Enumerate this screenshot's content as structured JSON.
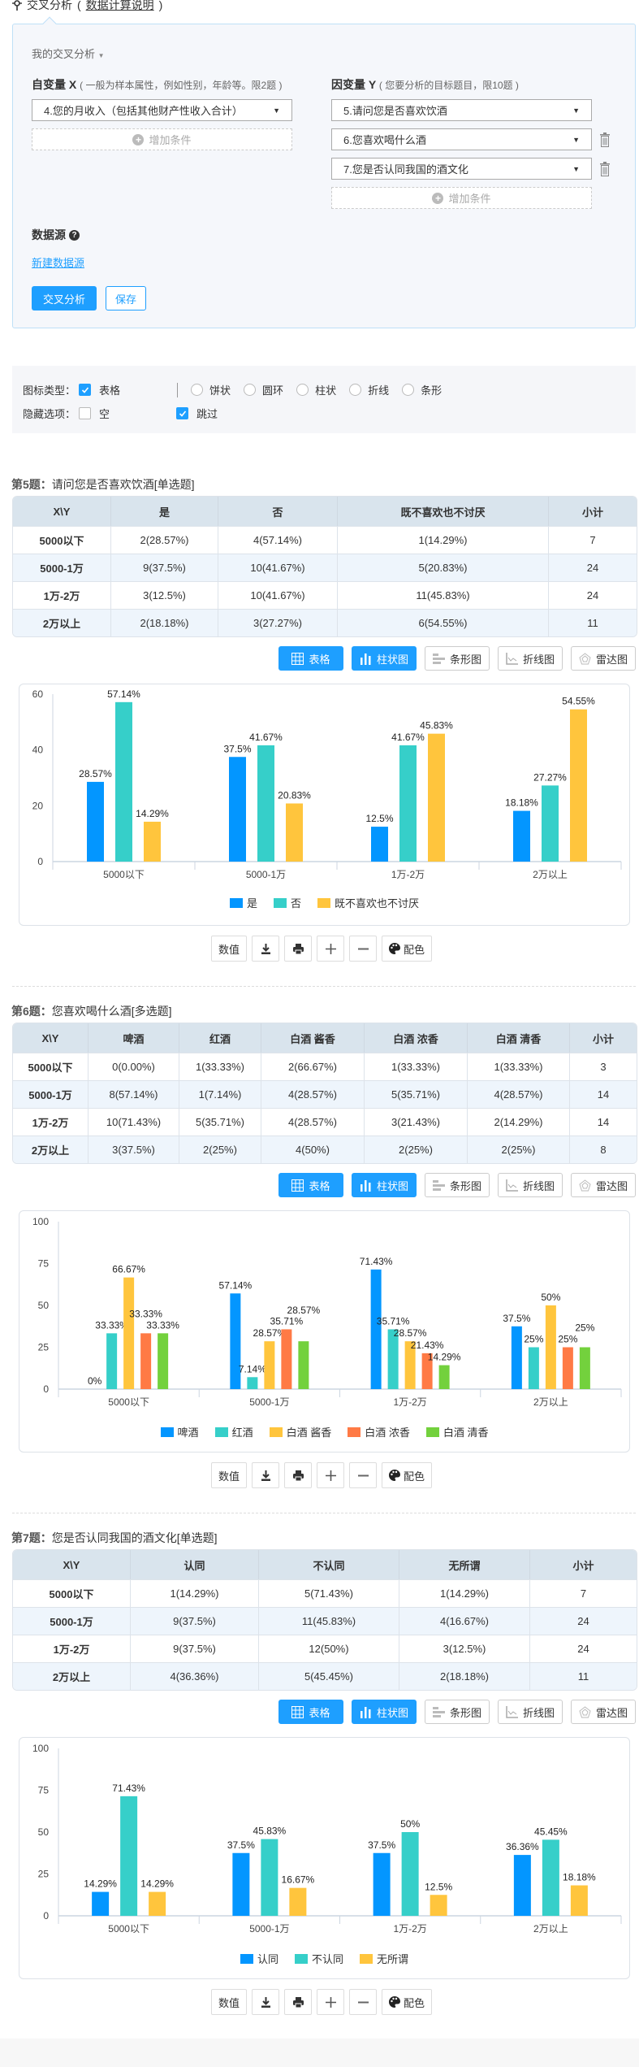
{
  "header": {
    "title": "交叉分析",
    "title_paren_open": "(",
    "calc_link": "数据计算说明",
    "title_paren_close": ")",
    "pin_icon": "pin-icon"
  },
  "panel": {
    "my_analysis": "我的交叉分析",
    "x_label": "自变量 X",
    "x_hint": "( 一般为样本属性，例如性别，年龄等。限2题 )",
    "y_label": "因变量 Y",
    "y_hint": "( 您要分析的目标题目，限10题 )",
    "x_selects": [
      "4.您的月收入（包括其他财产性收入合计）"
    ],
    "y_selects": [
      "5.请问您是否喜欢饮酒",
      "6.您喜欢喝什么酒",
      "7.您是否认同我国的酒文化"
    ],
    "add_condition": "增加条件",
    "datasource_label": "数据源",
    "new_datasource": "新建数据源",
    "analyze_button": "交叉分析",
    "save_button": "保存"
  },
  "options": {
    "chart_type_label": "图标类型：",
    "table_option": {
      "label": "表格",
      "checked": true
    },
    "chart_radios": [
      "饼状",
      "圆环",
      "柱状",
      "折线",
      "条形"
    ],
    "hide_label": "隐藏选项：",
    "hide_empty": {
      "label": "空",
      "checked": false
    },
    "hide_skip": {
      "label": "跳过",
      "checked": true
    }
  },
  "chart_type_buttons": [
    {
      "label": "表格",
      "icon": "table-icon",
      "active": true
    },
    {
      "label": "柱状图",
      "icon": "bar-chart-icon",
      "active": true
    },
    {
      "label": "条形图",
      "icon": "horizontal-bar-icon",
      "active": false
    },
    {
      "label": "折线图",
      "icon": "line-chart-icon",
      "active": false
    },
    {
      "label": "雷达图",
      "icon": "radar-chart-icon",
      "active": false
    }
  ],
  "tool_buttons": [
    {
      "label": "数值",
      "icon": ""
    },
    {
      "label": "",
      "icon": "download-icon"
    },
    {
      "label": "",
      "icon": "print-icon"
    },
    {
      "label": "",
      "icon": "zoom-in-icon"
    },
    {
      "label": "",
      "icon": "zoom-out-icon"
    },
    {
      "label": "配色",
      "icon": "palette-icon"
    }
  ],
  "colors": {
    "primary": "#1e9fff",
    "series": [
      "#0396ff",
      "#36cfc9",
      "#ffc53d",
      "#ff7a45",
      "#73d13d"
    ]
  },
  "questions": [
    {
      "number": "第5题：",
      "title": "请问您是否喜欢饮酒[单选题]",
      "headers": [
        "X\\Y",
        "是",
        "否",
        "既不喜欢也不讨厌",
        "小计"
      ],
      "rows": [
        [
          "5000以下",
          "2(28.57%)",
          "4(57.14%)",
          "1(14.29%)",
          "7"
        ],
        [
          "5000-1万",
          "9(37.5%)",
          "10(41.67%)",
          "5(20.83%)",
          "24"
        ],
        [
          "1万-2万",
          "3(12.5%)",
          "10(41.67%)",
          "11(45.83%)",
          "24"
        ],
        [
          "2万以上",
          "2(18.18%)",
          "3(27.27%)",
          "6(54.55%)",
          "11"
        ]
      ]
    },
    {
      "number": "第6题：",
      "title": "您喜欢喝什么酒[多选题]",
      "headers": [
        "X\\Y",
        "啤酒",
        "红酒",
        "白酒 酱香",
        "白酒 浓香",
        "白酒 清香",
        "小计"
      ],
      "rows": [
        [
          "5000以下",
          "0(0.00%)",
          "1(33.33%)",
          "2(66.67%)",
          "1(33.33%)",
          "1(33.33%)",
          "3"
        ],
        [
          "5000-1万",
          "8(57.14%)",
          "1(7.14%)",
          "4(28.57%)",
          "5(35.71%)",
          "4(28.57%)",
          "14"
        ],
        [
          "1万-2万",
          "10(71.43%)",
          "5(35.71%)",
          "4(28.57%)",
          "3(21.43%)",
          "2(14.29%)",
          "14"
        ],
        [
          "2万以上",
          "3(37.5%)",
          "2(25%)",
          "4(50%)",
          "2(25%)",
          "2(25%)",
          "8"
        ]
      ]
    },
    {
      "number": "第7题：",
      "title": "您是否认同我国的酒文化[单选题]",
      "headers": [
        "X\\Y",
        "认同",
        "不认同",
        "无所谓",
        "小计"
      ],
      "rows": [
        [
          "5000以下",
          "1(14.29%)",
          "5(71.43%)",
          "1(14.29%)",
          "7"
        ],
        [
          "5000-1万",
          "9(37.5%)",
          "11(45.83%)",
          "4(16.67%)",
          "24"
        ],
        [
          "1万-2万",
          "9(37.5%)",
          "12(50%)",
          "3(12.5%)",
          "24"
        ],
        [
          "2万以上",
          "4(36.36%)",
          "5(45.45%)",
          "2(18.18%)",
          "11"
        ]
      ]
    }
  ],
  "chart_data": [
    {
      "type": "bar",
      "categories": [
        "5000以下",
        "5000-1万",
        "1万-2万",
        "2万以上"
      ],
      "ylim": [
        0,
        60
      ],
      "yticks": [
        0,
        20,
        40,
        60
      ],
      "legend": "bottom",
      "grid": false,
      "series": [
        {
          "name": "是",
          "values": [
            28.57,
            37.5,
            12.5,
            18.18
          ]
        },
        {
          "name": "否",
          "values": [
            57.14,
            41.67,
            41.67,
            27.27
          ]
        },
        {
          "name": "既不喜欢也不讨厌",
          "values": [
            14.29,
            20.83,
            45.83,
            54.55
          ]
        }
      ]
    },
    {
      "type": "bar",
      "categories": [
        "5000以下",
        "5000-1万",
        "1万-2万",
        "2万以上"
      ],
      "ylim": [
        0,
        100
      ],
      "yticks": [
        0,
        25,
        50,
        75,
        100
      ],
      "legend": "bottom",
      "grid": false,
      "series": [
        {
          "name": "啤酒",
          "values": [
            0,
            57.14,
            71.43,
            37.5
          ]
        },
        {
          "name": "红酒",
          "values": [
            33.33,
            7.14,
            35.71,
            25
          ]
        },
        {
          "name": "白酒 酱香",
          "values": [
            66.67,
            28.57,
            28.57,
            50
          ]
        },
        {
          "name": "白酒 浓香",
          "values": [
            33.33,
            35.71,
            21.43,
            25
          ]
        },
        {
          "name": "白酒 清香",
          "values": [
            33.33,
            28.57,
            14.29,
            25
          ]
        }
      ]
    },
    {
      "type": "bar",
      "categories": [
        "5000以下",
        "5000-1万",
        "1万-2万",
        "2万以上"
      ],
      "ylim": [
        0,
        100
      ],
      "yticks": [
        0,
        25,
        50,
        75,
        100
      ],
      "legend": "bottom",
      "grid": false,
      "series": [
        {
          "name": "认同",
          "values": [
            14.29,
            37.5,
            37.5,
            36.36
          ]
        },
        {
          "name": "不认同",
          "values": [
            71.43,
            45.83,
            50,
            45.45
          ]
        },
        {
          "name": "无所谓",
          "values": [
            14.29,
            16.67,
            12.5,
            18.18
          ]
        }
      ]
    }
  ]
}
